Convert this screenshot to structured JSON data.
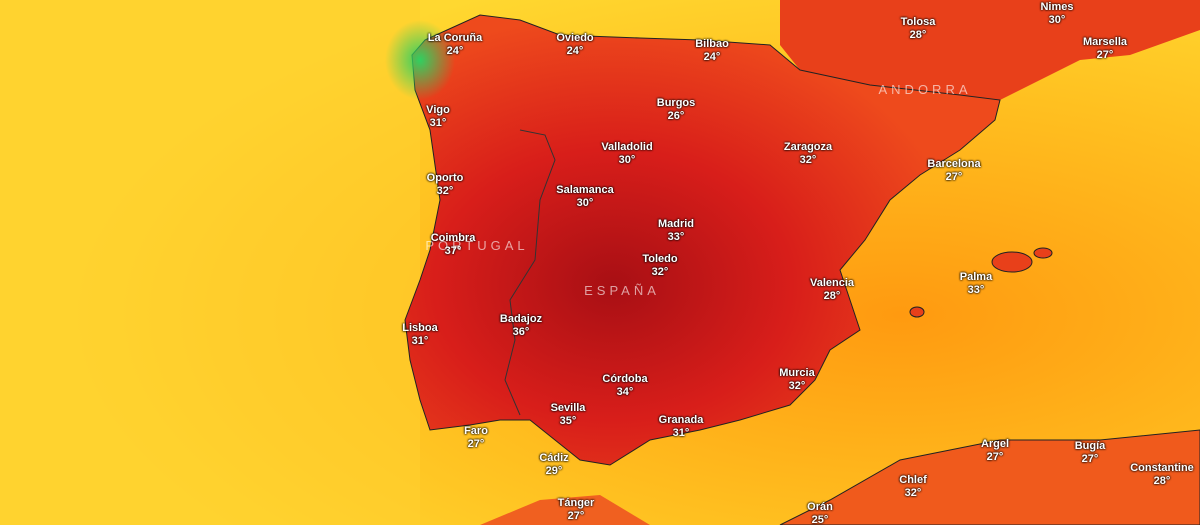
{
  "cities": [
    {
      "name": "La Coruña",
      "temp": "24°"
    },
    {
      "name": "Oviedo",
      "temp": "24°"
    },
    {
      "name": "Bilbao",
      "temp": "24°"
    },
    {
      "name": "Tolosa",
      "temp": "28°"
    },
    {
      "name": "Nimes",
      "temp": "30°"
    },
    {
      "name": "Marsella",
      "temp": "27°"
    },
    {
      "name": "Vigo",
      "temp": "31°"
    },
    {
      "name": "Burgos",
      "temp": "26°"
    },
    {
      "name": "Valladolid",
      "temp": "30°"
    },
    {
      "name": "Zaragoza",
      "temp": "32°"
    },
    {
      "name": "Barcelona",
      "temp": "27°"
    },
    {
      "name": "Oporto",
      "temp": "32°"
    },
    {
      "name": "Salamanca",
      "temp": "30°"
    },
    {
      "name": "Madrid",
      "temp": "33°"
    },
    {
      "name": "Coimbra",
      "temp": "37°"
    },
    {
      "name": "Toledo",
      "temp": "32°"
    },
    {
      "name": "Palma",
      "temp": "33°"
    },
    {
      "name": "Valencia",
      "temp": "28°"
    },
    {
      "name": "Badajoz",
      "temp": "36°"
    },
    {
      "name": "Lisboa",
      "temp": "31°"
    },
    {
      "name": "Córdoba",
      "temp": "34°"
    },
    {
      "name": "Murcia",
      "temp": "32°"
    },
    {
      "name": "Sevilla",
      "temp": "35°"
    },
    {
      "name": "Granada",
      "temp": "31°"
    },
    {
      "name": "Faro",
      "temp": "27°"
    },
    {
      "name": "Cádiz",
      "temp": "29°"
    },
    {
      "name": "Argel",
      "temp": "27°"
    },
    {
      "name": "Bugía",
      "temp": "27°"
    },
    {
      "name": "Constantine",
      "temp": "28°"
    },
    {
      "name": "Chlef",
      "temp": "32°"
    },
    {
      "name": "Tánger",
      "temp": "27°"
    },
    {
      "name": "Orán",
      "temp": "25°"
    }
  ],
  "regions": [
    "PORTUGAL",
    "ESPAÑA",
    "ANDORRA"
  ]
}
